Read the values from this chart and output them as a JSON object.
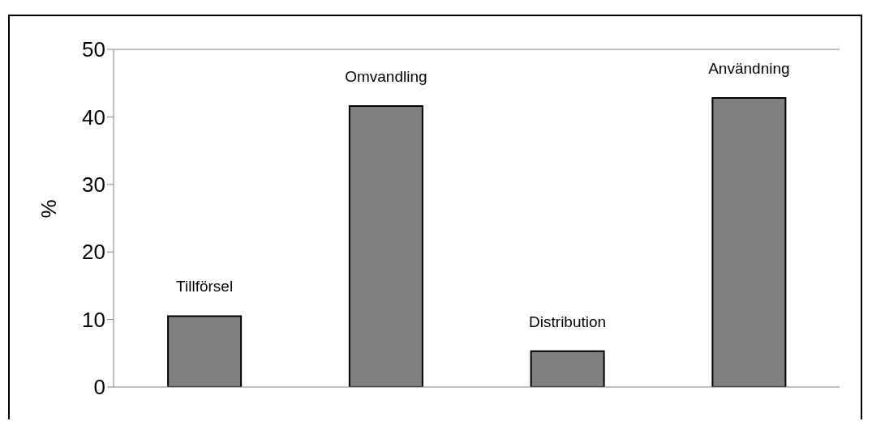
{
  "chart_data": {
    "type": "bar",
    "ylabel": "%",
    "categories": [
      "Tillförsel",
      "Omvandling",
      "Distribution",
      "Användning"
    ],
    "values": [
      10.5,
      41.6,
      5.3,
      42.8
    ],
    "color": "#808080",
    "ylim": [
      0,
      50
    ],
    "yticks": [
      0,
      10,
      20,
      30,
      40,
      50
    ],
    "tick_labels": "y"
  }
}
